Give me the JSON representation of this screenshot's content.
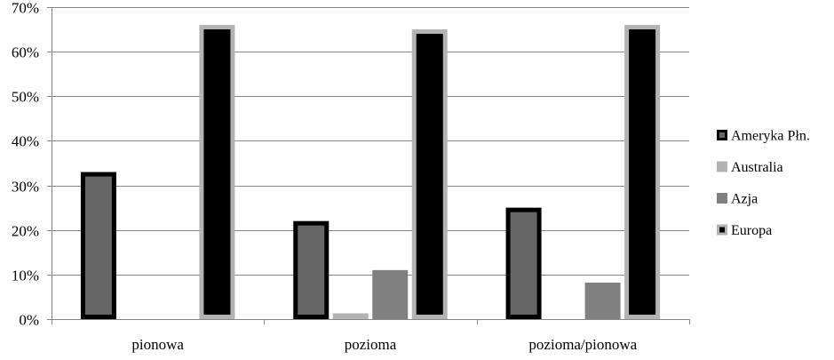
{
  "chart_data": {
    "type": "bar",
    "categories": [
      "pionowa",
      "pozioma",
      "pozioma/pionowa"
    ],
    "yticks": [
      "0%",
      "10%",
      "20%",
      "30%",
      "40%",
      "50%",
      "60%",
      "70%"
    ],
    "ylim": [
      0,
      70
    ],
    "grid": true,
    "legend_position": "right",
    "series": [
      {
        "name": "Ameryka Płn.",
        "values": [
          33,
          22,
          25
        ],
        "fill": "#666666",
        "stroke": "#000000"
      },
      {
        "name": "Australia",
        "values": [
          0,
          1.3,
          0
        ],
        "fill": "#b3b3b3",
        "stroke": "#b3b3b3"
      },
      {
        "name": "Azja",
        "values": [
          0,
          11,
          8.2
        ],
        "fill": "#808080",
        "stroke": "#808080"
      },
      {
        "name": "Europa",
        "values": [
          66,
          65,
          66
        ],
        "fill": "#000000",
        "stroke": "#b3b3b3"
      }
    ]
  }
}
